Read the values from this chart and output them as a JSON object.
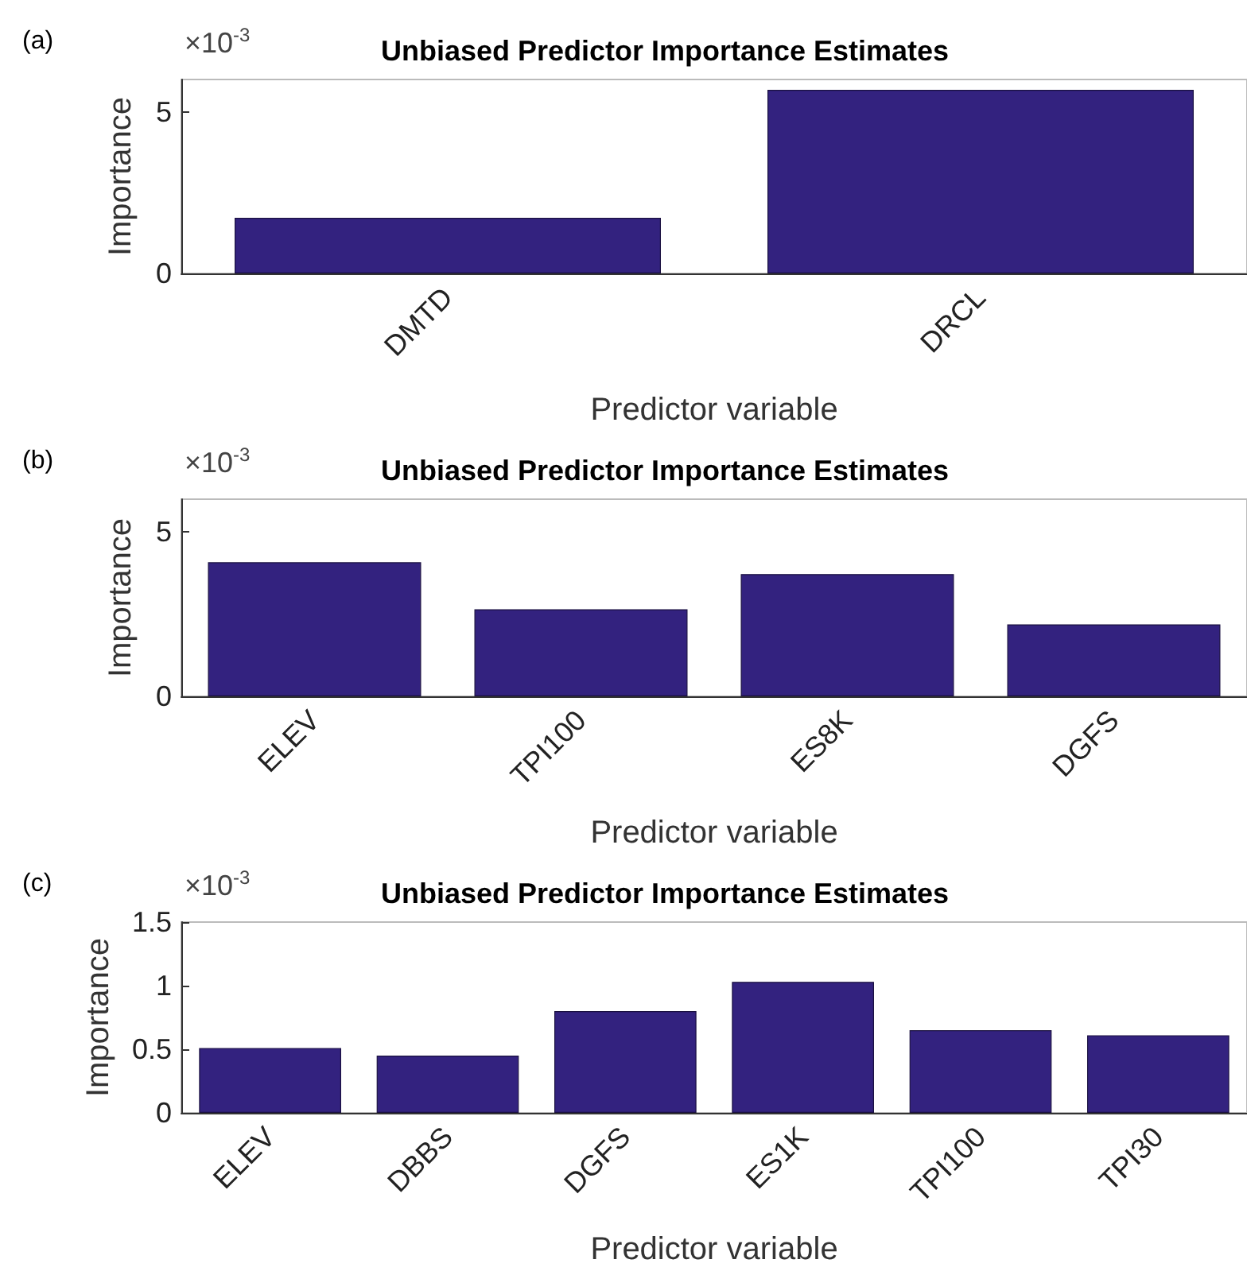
{
  "chart_data": [
    {
      "type": "bar",
      "title": "Unbiased Predictor Importance Estimates",
      "xlabel": "Predictor variable",
      "ylabel": "Importance",
      "annotations": [
        "(a)",
        "×10$^{-3}$"
      ],
      "categories": [
        "DMTD",
        "DRCL"
      ],
      "values": [
        1.72,
        5.68
      ],
      "color": "#33227f",
      "ylim": [
        0,
        6
      ],
      "yticks": [
        0,
        5
      ],
      "grid": false
    },
    {
      "type": "bar",
      "title": "Unbiased Predictor Importance Estimates",
      "xlabel": "Predictor variable",
      "ylabel": "Importance",
      "annotations": [
        "(b)",
        "×10$^{-3}$"
      ],
      "categories": [
        "ELEV",
        "TPI100",
        "ES8K",
        "DGFS"
      ],
      "values": [
        4.08,
        2.65,
        3.72,
        2.19
      ],
      "color": "#33227f",
      "ylim": [
        0,
        6
      ],
      "yticks": [
        0,
        5
      ],
      "grid": false
    },
    {
      "type": "bar",
      "title": "Unbiased Predictor Importance Estimates",
      "xlabel": "Predictor variable",
      "ylabel": "Importance",
      "annotations": [
        "(c)",
        "×10$^{-3}$"
      ],
      "categories": [
        "ELEV",
        "DBBS",
        "DGFS",
        "ES1K",
        "TPI100",
        "TPI30"
      ],
      "values": [
        0.51,
        0.45,
        0.8,
        1.03,
        0.65,
        0.61
      ],
      "color": "#33227f",
      "ylim": [
        0,
        1.5
      ],
      "yticks": [
        0,
        0.5,
        1,
        1.5
      ],
      "grid": false
    }
  ]
}
